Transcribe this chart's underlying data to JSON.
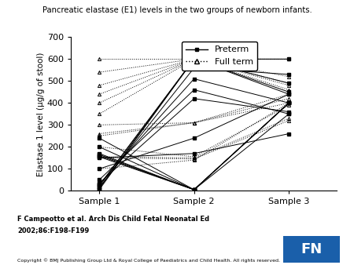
{
  "title": "Pancreatic elastase (E1) levels in the two groups of newborn infants.",
  "ylabel": "Elastase 1 level (µg/g of stool)",
  "xtick_labels": [
    "Sample 1",
    "Sample 2",
    "Sample 3"
  ],
  "ylim": [
    0,
    700
  ],
  "yticks": [
    0,
    100,
    200,
    300,
    400,
    500,
    600,
    700
  ],
  "footer_line1": "F Campeotto et al. Arch Dis Child Fetal Neonatal Ed",
  "footer_line2": "2002;86:F198-F199",
  "copyright": "Copyright © BMJ Publishing Group Ltd & Royal College of Paediatrics and Child Health. All rights reserved.",
  "fn_box_color": "#1a5faa",
  "preterm_data": [
    [
      5,
      600,
      600
    ],
    [
      10,
      600,
      490
    ],
    [
      15,
      560,
      530
    ],
    [
      20,
      600,
      450
    ],
    [
      25,
      600,
      440
    ],
    [
      30,
      510,
      400
    ],
    [
      35,
      420,
      360
    ],
    [
      50,
      460,
      350
    ],
    [
      100,
      240,
      440
    ],
    [
      150,
      170,
      260
    ],
    [
      155,
      5,
      400
    ],
    [
      160,
      5,
      400
    ],
    [
      165,
      5,
      400
    ],
    [
      170,
      5,
      400
    ],
    [
      200,
      5,
      400
    ],
    [
      240,
      5,
      350
    ]
  ],
  "fullterm_data": [
    [
      600,
      600,
      600
    ],
    [
      540,
      600,
      600
    ],
    [
      480,
      600,
      520
    ],
    [
      440,
      600,
      490
    ],
    [
      400,
      600,
      480
    ],
    [
      350,
      600,
      460
    ],
    [
      300,
      310,
      440
    ],
    [
      260,
      310,
      420
    ],
    [
      250,
      310,
      400
    ],
    [
      200,
      155,
      390
    ],
    [
      155,
      150,
      330
    ],
    [
      150,
      145,
      320
    ],
    [
      100,
      140,
      400
    ]
  ]
}
